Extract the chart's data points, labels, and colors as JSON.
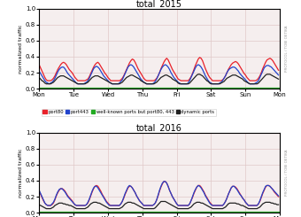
{
  "title_2015": "total_2015",
  "title_2016": "total_2016",
  "ylabel": "normalized traffic",
  "right_label": "PROTOCOL / TOBI OETIKA",
  "ylim": [
    0.0,
    1.0
  ],
  "yticks": [
    0.0,
    0.2,
    0.4,
    0.6,
    0.8,
    1.0
  ],
  "xtick_labels": [
    "Mon",
    "Tue",
    "Wed",
    "Thu",
    "Fri",
    "Sat",
    "Sun",
    "Mon"
  ],
  "legend_entries": [
    "port80",
    "port443",
    "well-known ports but port80, 443",
    "dynamic ports"
  ],
  "colors": {
    "port80": "#e8212a",
    "port443": "#2244cc",
    "wellknown": "#22aa22",
    "dynamic": "#222222"
  },
  "background_color": "#f5eeee",
  "grid_color": "#e0c8c8",
  "n_points": 168,
  "days": 8,
  "data_2015": {
    "port80": [
      0.3,
      0.26,
      0.22,
      0.18,
      0.14,
      0.11,
      0.1,
      0.1,
      0.1,
      0.11,
      0.13,
      0.16,
      0.2,
      0.24,
      0.27,
      0.3,
      0.32,
      0.33,
      0.32,
      0.3,
      0.27,
      0.24,
      0.22,
      0.2,
      0.17,
      0.14,
      0.12,
      0.1,
      0.1,
      0.1,
      0.1,
      0.1,
      0.1,
      0.11,
      0.12,
      0.15,
      0.19,
      0.23,
      0.27,
      0.3,
      0.32,
      0.33,
      0.31,
      0.28,
      0.25,
      0.22,
      0.19,
      0.17,
      0.14,
      0.12,
      0.1,
      0.1,
      0.1,
      0.1,
      0.1,
      0.1,
      0.1,
      0.11,
      0.13,
      0.16,
      0.2,
      0.24,
      0.28,
      0.32,
      0.35,
      0.37,
      0.36,
      0.33,
      0.29,
      0.25,
      0.22,
      0.19,
      0.16,
      0.13,
      0.11,
      0.1,
      0.1,
      0.1,
      0.1,
      0.1,
      0.1,
      0.11,
      0.13,
      0.16,
      0.2,
      0.25,
      0.29,
      0.33,
      0.36,
      0.38,
      0.36,
      0.32,
      0.28,
      0.24,
      0.21,
      0.18,
      0.15,
      0.12,
      0.11,
      0.1,
      0.1,
      0.1,
      0.1,
      0.1,
      0.1,
      0.12,
      0.15,
      0.19,
      0.24,
      0.29,
      0.33,
      0.37,
      0.39,
      0.38,
      0.35,
      0.3,
      0.25,
      0.21,
      0.17,
      0.14,
      0.12,
      0.1,
      0.1,
      0.1,
      0.1,
      0.1,
      0.1,
      0.1,
      0.11,
      0.13,
      0.16,
      0.2,
      0.24,
      0.27,
      0.3,
      0.32,
      0.33,
      0.34,
      0.33,
      0.31,
      0.28,
      0.25,
      0.22,
      0.19,
      0.17,
      0.14,
      0.12,
      0.1,
      0.1,
      0.1,
      0.1,
      0.1,
      0.11,
      0.13,
      0.16,
      0.2,
      0.25,
      0.29,
      0.33,
      0.36,
      0.37,
      0.38,
      0.37,
      0.35,
      0.32,
      0.29,
      0.26,
      0.23
    ],
    "port443": [
      0.22,
      0.19,
      0.16,
      0.13,
      0.1,
      0.08,
      0.07,
      0.06,
      0.07,
      0.08,
      0.1,
      0.13,
      0.17,
      0.21,
      0.24,
      0.26,
      0.27,
      0.27,
      0.25,
      0.22,
      0.19,
      0.17,
      0.15,
      0.13,
      0.11,
      0.09,
      0.07,
      0.06,
      0.06,
      0.06,
      0.06,
      0.06,
      0.07,
      0.08,
      0.1,
      0.13,
      0.17,
      0.21,
      0.25,
      0.27,
      0.28,
      0.27,
      0.25,
      0.22,
      0.19,
      0.16,
      0.14,
      0.12,
      0.1,
      0.08,
      0.07,
      0.06,
      0.06,
      0.06,
      0.06,
      0.06,
      0.07,
      0.09,
      0.11,
      0.15,
      0.19,
      0.23,
      0.27,
      0.29,
      0.3,
      0.29,
      0.27,
      0.24,
      0.21,
      0.18,
      0.15,
      0.12,
      0.1,
      0.08,
      0.07,
      0.06,
      0.06,
      0.06,
      0.06,
      0.06,
      0.07,
      0.09,
      0.12,
      0.16,
      0.2,
      0.24,
      0.27,
      0.29,
      0.3,
      0.29,
      0.27,
      0.24,
      0.2,
      0.17,
      0.14,
      0.12,
      0.1,
      0.08,
      0.07,
      0.06,
      0.06,
      0.06,
      0.06,
      0.06,
      0.07,
      0.1,
      0.14,
      0.18,
      0.22,
      0.26,
      0.29,
      0.3,
      0.29,
      0.27,
      0.24,
      0.2,
      0.16,
      0.13,
      0.1,
      0.08,
      0.07,
      0.06,
      0.06,
      0.06,
      0.06,
      0.06,
      0.07,
      0.08,
      0.1,
      0.13,
      0.16,
      0.2,
      0.23,
      0.25,
      0.26,
      0.27,
      0.27,
      0.26,
      0.24,
      0.22,
      0.19,
      0.17,
      0.15,
      0.13,
      0.11,
      0.09,
      0.07,
      0.06,
      0.06,
      0.06,
      0.06,
      0.07,
      0.08,
      0.1,
      0.14,
      0.18,
      0.22,
      0.26,
      0.28,
      0.29,
      0.29,
      0.28,
      0.27,
      0.25,
      0.23,
      0.21,
      0.19,
      0.17
    ],
    "wellknown": [
      0.01,
      0.01,
      0.01,
      0.01,
      0.01,
      0.01,
      0.01,
      0.01,
      0.01,
      0.01,
      0.01,
      0.01,
      0.01,
      0.01,
      0.01,
      0.01,
      0.01,
      0.01,
      0.01,
      0.01,
      0.01,
      0.01,
      0.01,
      0.01,
      0.01,
      0.01,
      0.01,
      0.01,
      0.01,
      0.01,
      0.01,
      0.01,
      0.01,
      0.01,
      0.01,
      0.01,
      0.01,
      0.01,
      0.01,
      0.01,
      0.01,
      0.01,
      0.01,
      0.01,
      0.01,
      0.01,
      0.01,
      0.01,
      0.01,
      0.01,
      0.01,
      0.01,
      0.01,
      0.01,
      0.01,
      0.01,
      0.01,
      0.01,
      0.01,
      0.01,
      0.01,
      0.01,
      0.01,
      0.01,
      0.01,
      0.01,
      0.01,
      0.01,
      0.01,
      0.01,
      0.01,
      0.01,
      0.01,
      0.01,
      0.01,
      0.01,
      0.01,
      0.01,
      0.01,
      0.01,
      0.01,
      0.01,
      0.01,
      0.01,
      0.01,
      0.01,
      0.01,
      0.01,
      0.01,
      0.01,
      0.01,
      0.01,
      0.01,
      0.01,
      0.01,
      0.01,
      0.01,
      0.01,
      0.01,
      0.01,
      0.01,
      0.01,
      0.01,
      0.01,
      0.01,
      0.01,
      0.01,
      0.01,
      0.01,
      0.01,
      0.01,
      0.01,
      0.01,
      0.01,
      0.01,
      0.01,
      0.01,
      0.01,
      0.01,
      0.01,
      0.01,
      0.01,
      0.01,
      0.01,
      0.01,
      0.01,
      0.01,
      0.01,
      0.01,
      0.01,
      0.01,
      0.01,
      0.01,
      0.01,
      0.01,
      0.01,
      0.01,
      0.01,
      0.01,
      0.01,
      0.01,
      0.01,
      0.01,
      0.01,
      0.01,
      0.01,
      0.01,
      0.01,
      0.01,
      0.01,
      0.01,
      0.01,
      0.01,
      0.01,
      0.01,
      0.01,
      0.01,
      0.01,
      0.01,
      0.01,
      0.01,
      0.01,
      0.01,
      0.01,
      0.01,
      0.01,
      0.01,
      0.01
    ],
    "dynamic": [
      0.14,
      0.12,
      0.1,
      0.09,
      0.07,
      0.06,
      0.06,
      0.06,
      0.06,
      0.07,
      0.08,
      0.1,
      0.12,
      0.14,
      0.15,
      0.16,
      0.16,
      0.16,
      0.15,
      0.14,
      0.13,
      0.12,
      0.11,
      0.1,
      0.09,
      0.08,
      0.07,
      0.06,
      0.06,
      0.06,
      0.06,
      0.06,
      0.06,
      0.07,
      0.08,
      0.1,
      0.12,
      0.14,
      0.15,
      0.16,
      0.16,
      0.16,
      0.15,
      0.14,
      0.13,
      0.12,
      0.11,
      0.1,
      0.09,
      0.08,
      0.07,
      0.06,
      0.06,
      0.06,
      0.06,
      0.06,
      0.06,
      0.07,
      0.08,
      0.1,
      0.12,
      0.14,
      0.15,
      0.16,
      0.17,
      0.17,
      0.16,
      0.15,
      0.14,
      0.13,
      0.12,
      0.1,
      0.09,
      0.08,
      0.07,
      0.06,
      0.06,
      0.06,
      0.06,
      0.06,
      0.06,
      0.07,
      0.08,
      0.1,
      0.12,
      0.14,
      0.15,
      0.16,
      0.17,
      0.17,
      0.16,
      0.15,
      0.14,
      0.12,
      0.11,
      0.1,
      0.09,
      0.07,
      0.06,
      0.06,
      0.06,
      0.06,
      0.06,
      0.06,
      0.06,
      0.07,
      0.09,
      0.11,
      0.13,
      0.15,
      0.17,
      0.18,
      0.18,
      0.17,
      0.16,
      0.14,
      0.12,
      0.1,
      0.09,
      0.07,
      0.06,
      0.06,
      0.06,
      0.06,
      0.06,
      0.06,
      0.06,
      0.07,
      0.08,
      0.09,
      0.11,
      0.13,
      0.14,
      0.15,
      0.16,
      0.17,
      0.17,
      0.17,
      0.16,
      0.15,
      0.14,
      0.13,
      0.12,
      0.1,
      0.09,
      0.08,
      0.07,
      0.06,
      0.06,
      0.06,
      0.06,
      0.06,
      0.06,
      0.07,
      0.09,
      0.11,
      0.13,
      0.15,
      0.17,
      0.18,
      0.18,
      0.18,
      0.17,
      0.16,
      0.15,
      0.14,
      0.13,
      0.12
    ]
  },
  "data_2016": {
    "port80": [
      0.27,
      0.23,
      0.19,
      0.15,
      0.12,
      0.1,
      0.09,
      0.09,
      0.09,
      0.1,
      0.12,
      0.16,
      0.21,
      0.25,
      0.28,
      0.3,
      0.3,
      0.29,
      0.27,
      0.24,
      0.21,
      0.19,
      0.17,
      0.15,
      0.12,
      0.1,
      0.09,
      0.09,
      0.09,
      0.09,
      0.09,
      0.09,
      0.09,
      0.1,
      0.12,
      0.16,
      0.21,
      0.26,
      0.3,
      0.33,
      0.34,
      0.33,
      0.3,
      0.27,
      0.23,
      0.2,
      0.17,
      0.14,
      0.12,
      0.1,
      0.09,
      0.09,
      0.09,
      0.09,
      0.09,
      0.09,
      0.09,
      0.11,
      0.14,
      0.18,
      0.23,
      0.27,
      0.31,
      0.33,
      0.33,
      0.31,
      0.28,
      0.25,
      0.21,
      0.18,
      0.15,
      0.13,
      0.11,
      0.09,
      0.09,
      0.09,
      0.09,
      0.09,
      0.09,
      0.09,
      0.1,
      0.12,
      0.16,
      0.21,
      0.27,
      0.32,
      0.36,
      0.39,
      0.39,
      0.37,
      0.33,
      0.28,
      0.24,
      0.2,
      0.17,
      0.14,
      0.11,
      0.09,
      0.09,
      0.09,
      0.09,
      0.09,
      0.09,
      0.09,
      0.09,
      0.11,
      0.15,
      0.19,
      0.24,
      0.28,
      0.32,
      0.34,
      0.34,
      0.32,
      0.29,
      0.26,
      0.22,
      0.19,
      0.16,
      0.13,
      0.11,
      0.09,
      0.09,
      0.09,
      0.09,
      0.09,
      0.09,
      0.09,
      0.09,
      0.11,
      0.14,
      0.18,
      0.23,
      0.27,
      0.31,
      0.33,
      0.33,
      0.32,
      0.3,
      0.27,
      0.24,
      0.21,
      0.18,
      0.16,
      0.13,
      0.11,
      0.09,
      0.09,
      0.09,
      0.09,
      0.09,
      0.09,
      0.09,
      0.11,
      0.14,
      0.19,
      0.24,
      0.28,
      0.32,
      0.34,
      0.34,
      0.33,
      0.31,
      0.29,
      0.26,
      0.24,
      0.22,
      0.2
    ],
    "port443": [
      0.28,
      0.24,
      0.2,
      0.16,
      0.12,
      0.1,
      0.09,
      0.09,
      0.09,
      0.11,
      0.13,
      0.17,
      0.22,
      0.26,
      0.29,
      0.3,
      0.3,
      0.28,
      0.26,
      0.23,
      0.2,
      0.18,
      0.16,
      0.14,
      0.12,
      0.1,
      0.09,
      0.09,
      0.09,
      0.09,
      0.09,
      0.09,
      0.09,
      0.1,
      0.13,
      0.17,
      0.22,
      0.27,
      0.31,
      0.33,
      0.33,
      0.31,
      0.28,
      0.25,
      0.22,
      0.19,
      0.16,
      0.13,
      0.11,
      0.09,
      0.09,
      0.09,
      0.09,
      0.09,
      0.09,
      0.09,
      0.09,
      0.11,
      0.14,
      0.19,
      0.24,
      0.28,
      0.32,
      0.34,
      0.33,
      0.31,
      0.28,
      0.25,
      0.21,
      0.18,
      0.15,
      0.13,
      0.11,
      0.09,
      0.09,
      0.09,
      0.09,
      0.09,
      0.09,
      0.09,
      0.1,
      0.12,
      0.16,
      0.22,
      0.28,
      0.33,
      0.37,
      0.39,
      0.39,
      0.37,
      0.33,
      0.28,
      0.24,
      0.2,
      0.17,
      0.14,
      0.11,
      0.09,
      0.09,
      0.09,
      0.09,
      0.09,
      0.09,
      0.09,
      0.09,
      0.11,
      0.15,
      0.2,
      0.25,
      0.29,
      0.32,
      0.34,
      0.33,
      0.31,
      0.28,
      0.25,
      0.21,
      0.18,
      0.15,
      0.12,
      0.1,
      0.09,
      0.09,
      0.09,
      0.09,
      0.09,
      0.09,
      0.09,
      0.09,
      0.11,
      0.14,
      0.18,
      0.23,
      0.27,
      0.31,
      0.33,
      0.33,
      0.31,
      0.29,
      0.26,
      0.23,
      0.21,
      0.18,
      0.16,
      0.13,
      0.11,
      0.09,
      0.09,
      0.09,
      0.09,
      0.09,
      0.09,
      0.09,
      0.11,
      0.15,
      0.2,
      0.25,
      0.29,
      0.33,
      0.34,
      0.34,
      0.33,
      0.31,
      0.29,
      0.27,
      0.25,
      0.23,
      0.21
    ],
    "wellknown": [
      0.01,
      0.01,
      0.01,
      0.01,
      0.01,
      0.01,
      0.01,
      0.01,
      0.01,
      0.01,
      0.01,
      0.01,
      0.01,
      0.01,
      0.01,
      0.01,
      0.01,
      0.01,
      0.01,
      0.01,
      0.01,
      0.01,
      0.01,
      0.01,
      0.01,
      0.01,
      0.01,
      0.01,
      0.01,
      0.01,
      0.01,
      0.01,
      0.01,
      0.01,
      0.01,
      0.01,
      0.01,
      0.01,
      0.01,
      0.01,
      0.01,
      0.01,
      0.01,
      0.01,
      0.01,
      0.01,
      0.01,
      0.01,
      0.01,
      0.01,
      0.01,
      0.01,
      0.01,
      0.01,
      0.01,
      0.01,
      0.01,
      0.01,
      0.01,
      0.01,
      0.01,
      0.01,
      0.01,
      0.01,
      0.01,
      0.01,
      0.01,
      0.01,
      0.01,
      0.01,
      0.01,
      0.01,
      0.01,
      0.01,
      0.01,
      0.01,
      0.01,
      0.01,
      0.01,
      0.01,
      0.01,
      0.01,
      0.01,
      0.01,
      0.01,
      0.01,
      0.01,
      0.01,
      0.01,
      0.01,
      0.01,
      0.01,
      0.01,
      0.01,
      0.01,
      0.01,
      0.01,
      0.01,
      0.01,
      0.01,
      0.01,
      0.01,
      0.01,
      0.01,
      0.01,
      0.01,
      0.01,
      0.01,
      0.01,
      0.01,
      0.01,
      0.01,
      0.01,
      0.01,
      0.01,
      0.01,
      0.01,
      0.01,
      0.01,
      0.01,
      0.01,
      0.01,
      0.01,
      0.01,
      0.01,
      0.01,
      0.01,
      0.01,
      0.01,
      0.01,
      0.01,
      0.01,
      0.01,
      0.01,
      0.01,
      0.01,
      0.01,
      0.01,
      0.01,
      0.01,
      0.01,
      0.01,
      0.01,
      0.01,
      0.01,
      0.01,
      0.01,
      0.01,
      0.01,
      0.01,
      0.01,
      0.01,
      0.01,
      0.01,
      0.01,
      0.01,
      0.01,
      0.01,
      0.01,
      0.01,
      0.01,
      0.01,
      0.01,
      0.01,
      0.01,
      0.01,
      0.01,
      0.01
    ],
    "dynamic": [
      0.1,
      0.09,
      0.08,
      0.07,
      0.06,
      0.05,
      0.05,
      0.05,
      0.05,
      0.06,
      0.07,
      0.09,
      0.1,
      0.11,
      0.12,
      0.12,
      0.12,
      0.11,
      0.11,
      0.1,
      0.1,
      0.09,
      0.09,
      0.08,
      0.07,
      0.06,
      0.05,
      0.05,
      0.05,
      0.05,
      0.05,
      0.05,
      0.05,
      0.06,
      0.07,
      0.09,
      0.11,
      0.12,
      0.13,
      0.13,
      0.13,
      0.12,
      0.12,
      0.11,
      0.1,
      0.09,
      0.08,
      0.07,
      0.06,
      0.05,
      0.05,
      0.05,
      0.05,
      0.05,
      0.05,
      0.05,
      0.05,
      0.06,
      0.07,
      0.09,
      0.11,
      0.12,
      0.13,
      0.13,
      0.13,
      0.12,
      0.12,
      0.11,
      0.1,
      0.09,
      0.08,
      0.07,
      0.06,
      0.05,
      0.05,
      0.05,
      0.05,
      0.05,
      0.05,
      0.05,
      0.05,
      0.06,
      0.08,
      0.1,
      0.12,
      0.14,
      0.14,
      0.14,
      0.14,
      0.13,
      0.12,
      0.11,
      0.1,
      0.09,
      0.08,
      0.07,
      0.06,
      0.05,
      0.05,
      0.05,
      0.05,
      0.05,
      0.05,
      0.05,
      0.05,
      0.06,
      0.07,
      0.09,
      0.11,
      0.12,
      0.13,
      0.13,
      0.13,
      0.12,
      0.12,
      0.11,
      0.1,
      0.09,
      0.08,
      0.07,
      0.06,
      0.05,
      0.05,
      0.05,
      0.05,
      0.05,
      0.05,
      0.05,
      0.05,
      0.06,
      0.07,
      0.09,
      0.11,
      0.12,
      0.12,
      0.12,
      0.12,
      0.12,
      0.11,
      0.11,
      0.1,
      0.09,
      0.09,
      0.08,
      0.07,
      0.06,
      0.05,
      0.05,
      0.05,
      0.05,
      0.05,
      0.05,
      0.05,
      0.06,
      0.07,
      0.09,
      0.11,
      0.12,
      0.13,
      0.13,
      0.13,
      0.13,
      0.12,
      0.12,
      0.11,
      0.11,
      0.1,
      0.1
    ]
  }
}
